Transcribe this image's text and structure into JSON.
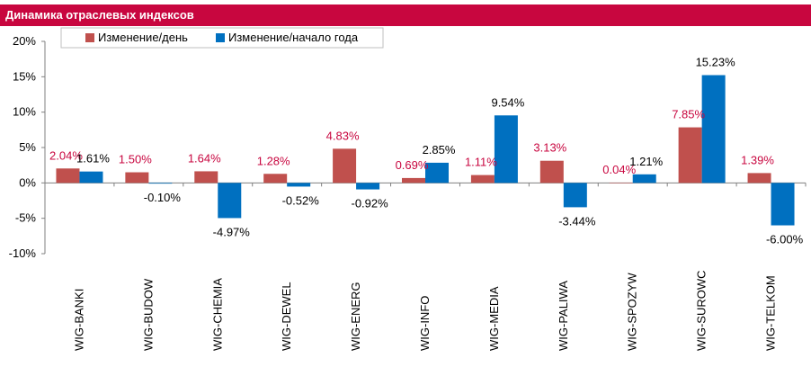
{
  "header": {
    "title": "Динамика отраслевых индексов"
  },
  "colors": {
    "header_bg": "#c8063f",
    "day": "#c0504d",
    "ytd": "#0070c0",
    "day_label": "#c8063f",
    "ytd_label": "#000000"
  },
  "chart_data": {
    "type": "bar",
    "title": "Динамика отраслевых индексов",
    "categories": [
      "WIG-BANKI",
      "WIG-BUDOW",
      "WIG-CHEMIA",
      "WIG-DEWEL",
      "WIG-ENERG",
      "WIG-INFO",
      "WIG-MEDIA",
      "WIG-PALIWA",
      "WIG-SPOZYW",
      "WIG-SUROWC",
      "WIG-TELKOM"
    ],
    "series": [
      {
        "name": "Изменение/день",
        "values": [
          2.04,
          1.5,
          1.64,
          1.28,
          4.83,
          0.69,
          1.11,
          3.13,
          0.04,
          7.85,
          1.39
        ],
        "labels": [
          "2.04%",
          "1.50%",
          "1.64%",
          "1.28%",
          "4.83%",
          "0.69%",
          "1.11%",
          "3.13%",
          "0.04%",
          "7.85%",
          "1.39%"
        ]
      },
      {
        "name": "Изменение/начало года",
        "values": [
          1.61,
          -0.1,
          -4.97,
          -0.52,
          -0.92,
          2.85,
          9.54,
          -3.44,
          1.21,
          15.23,
          -6.0
        ],
        "labels": [
          "1.61%",
          "-0.10%",
          "-4.97%",
          "-0.52%",
          "-0.92%",
          "2.85%",
          "9.54%",
          "-3.44%",
          "1.21%",
          "15.23%",
          "-6.00%"
        ]
      }
    ],
    "ylim": [
      -10,
      20
    ],
    "yticks": [
      20,
      15,
      10,
      5,
      0,
      -5,
      -10
    ],
    "ytick_labels": [
      "20%",
      "15%",
      "10%",
      "5%",
      "0%",
      "-5%",
      "-10%"
    ],
    "legend": "top-left",
    "grid": false
  }
}
